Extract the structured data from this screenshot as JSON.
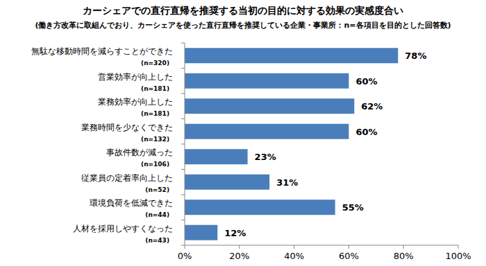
{
  "chart_data": {
    "type": "bar",
    "orientation": "horizontal",
    "title": "カーシェアでの直行直帰を推奨する当初の目的に対する効果の実感度合い",
    "subtitle": "(働き方改革に取組んでおり、カーシェアを使った直行直帰を推奨している企業・事業所：n=各項目を目的とした回答数)",
    "categories": [
      "無駄な移動時間を減らすことができた",
      "営業効率が向上した",
      "業務効率が向上した",
      "業務時間を少なくできた",
      "事故件数が減った",
      "従業員の定着率向上した",
      "環境負荷を低減できた",
      "人材を採用しやすくなった"
    ],
    "n_labels": [
      "(n=320)",
      "(n=181)",
      "(n=181)",
      "(n=132)",
      "(n=106)",
      "(n=52)",
      "(n=44)",
      "(n=43)"
    ],
    "values": [
      78,
      60,
      62,
      60,
      23,
      31,
      55,
      12
    ],
    "value_labels": [
      "78%",
      "60%",
      "62%",
      "60%",
      "23%",
      "31%",
      "55%",
      "12%"
    ],
    "color": "#4a7ebb",
    "xlim": [
      0,
      100
    ],
    "xticks": [
      {
        "value": 0,
        "label": "0%"
      },
      {
        "value": 20,
        "label": "20%"
      },
      {
        "value": 40,
        "label": "40%"
      },
      {
        "value": 60,
        "label": "60%"
      },
      {
        "value": 80,
        "label": "80%"
      },
      {
        "value": 100,
        "label": "100%"
      }
    ],
    "grid": false,
    "data_labels": true
  }
}
